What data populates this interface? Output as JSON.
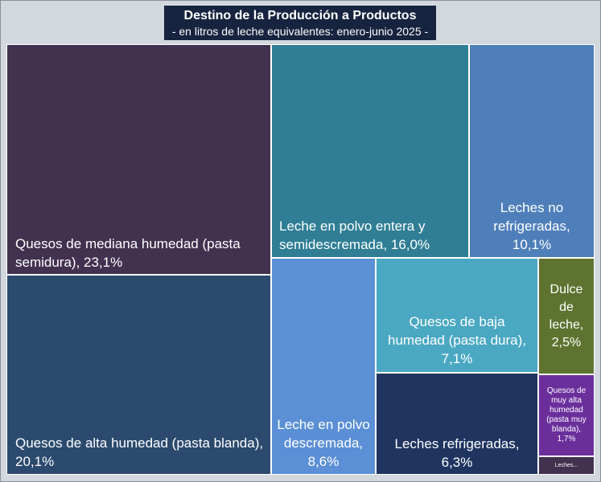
{
  "chart_data": {
    "type": "treemap",
    "title": "Destino de la Producción a Productos",
    "subtitle": "- en litros de leche equivalentes: enero-junio 2025 -",
    "unit": "%",
    "items": [
      {
        "name": "Quesos de mediana humedad (pasta semidura)",
        "value": 23.1,
        "label": "Quesos de mediana humedad (pasta\nsemidura), 23,1%",
        "color": "#42314f"
      },
      {
        "name": "Quesos de alta humedad (pasta blanda)",
        "value": 20.1,
        "label": "Quesos de alta humedad (pasta blanda),\n20,1%",
        "color": "#2b4a6e"
      },
      {
        "name": "Leche en polvo entera y semidescremada",
        "value": 16.0,
        "label": "Leche en polvo entera y\nsemidescremada, 16,0%",
        "color": "#2f7e95"
      },
      {
        "name": "Leches no refrigeradas",
        "value": 10.1,
        "label": "Leches no\nrefrigeradas,\n10,1%",
        "color": "#4f7fba"
      },
      {
        "name": "Leche en polvo descremada",
        "value": 8.6,
        "label": "Leche en polvo\ndescremada,\n8,6%",
        "color": "#5b8fd6"
      },
      {
        "name": "Quesos de baja humedad (pasta dura)",
        "value": 7.1,
        "label": "Quesos de baja\nhumedad (pasta dura),\n7,1%",
        "color": "#4aa8c2"
      },
      {
        "name": "Leches refrigeradas",
        "value": 6.3,
        "label": "Leches refrigeradas,\n6,3%",
        "color": "#1f3560"
      },
      {
        "name": "Dulce de leche",
        "value": 2.5,
        "label": "Dulce\nde\nleche,\n2,5%",
        "color": "#5e7330"
      },
      {
        "name": "Quesos de muy alta humedad (pasta muy blanda)",
        "value": 1.7,
        "label": "Quesos de\nmuy alta\nhumedad\n(pasta muy\nblanda),\n1,7%",
        "color": "#6b2f9c"
      },
      {
        "name": "Leches...",
        "value": 0.8,
        "label": "Leches...",
        "color": "#42314f"
      }
    ]
  }
}
